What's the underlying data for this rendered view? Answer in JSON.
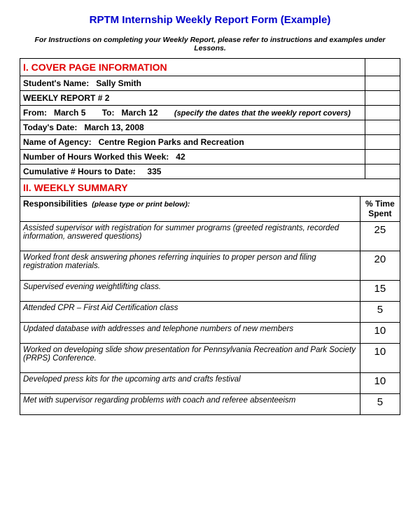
{
  "title": "RPTM Internship Weekly Report Form (Example)",
  "instructions": "For Instructions on completing your Weekly Report, please refer to instructions and examples under Lessons.",
  "section1": {
    "header": "I.  COVER PAGE INFORMATION",
    "rows": {
      "student_label": "Student's Name:",
      "student_value": "Sally Smith",
      "report_num": "WEEKLY REPORT  # 2",
      "from_label": "From:",
      "from_value": "March  5",
      "to_label": "To:",
      "to_value": "March 12",
      "date_note": "(specify the dates that the weekly report covers)",
      "today_label": "Today's Date:",
      "today_value": "March 13, 2008",
      "agency_label": "Name of Agency:",
      "agency_value": "Centre Region Parks and Recreation",
      "hours_week_label": "Number of Hours Worked this Week:",
      "hours_week_value": "42",
      "hours_cum_label": "Cumulative # Hours to Date:",
      "hours_cum_value": "335"
    }
  },
  "section2": {
    "header": "II.  WEEKLY SUMMARY",
    "resp_label": "Responsibilities",
    "resp_hint": "(please type or print below):",
    "pct_label": "% Time Spent"
  },
  "responsibilities": [
    {
      "desc": "Assisted supervisor with registration for summer programs (greeted registrants, recorded information, answered questions)",
      "pct": "25"
    },
    {
      "desc": "Worked front desk answering phones referring inquiries to proper person and filing registration materials.",
      "pct": "20"
    },
    {
      "desc": "Supervised evening weightlifting class.",
      "pct": "15"
    },
    {
      "desc": "Attended CPR – First Aid Certification class",
      "pct": "5"
    },
    {
      "desc": "Updated database with addresses and telephone numbers of new members",
      "pct": "10"
    },
    {
      "desc": "Worked on developing slide show presentation for Pennsylvania Recreation and Park Society (PRPS) Conference.",
      "pct": "10"
    },
    {
      "desc": "Developed press kits for the upcoming arts and crafts festival",
      "pct": "10"
    },
    {
      "desc": "Met with supervisor regarding problems with coach and referee absenteeism",
      "pct": "5"
    }
  ]
}
